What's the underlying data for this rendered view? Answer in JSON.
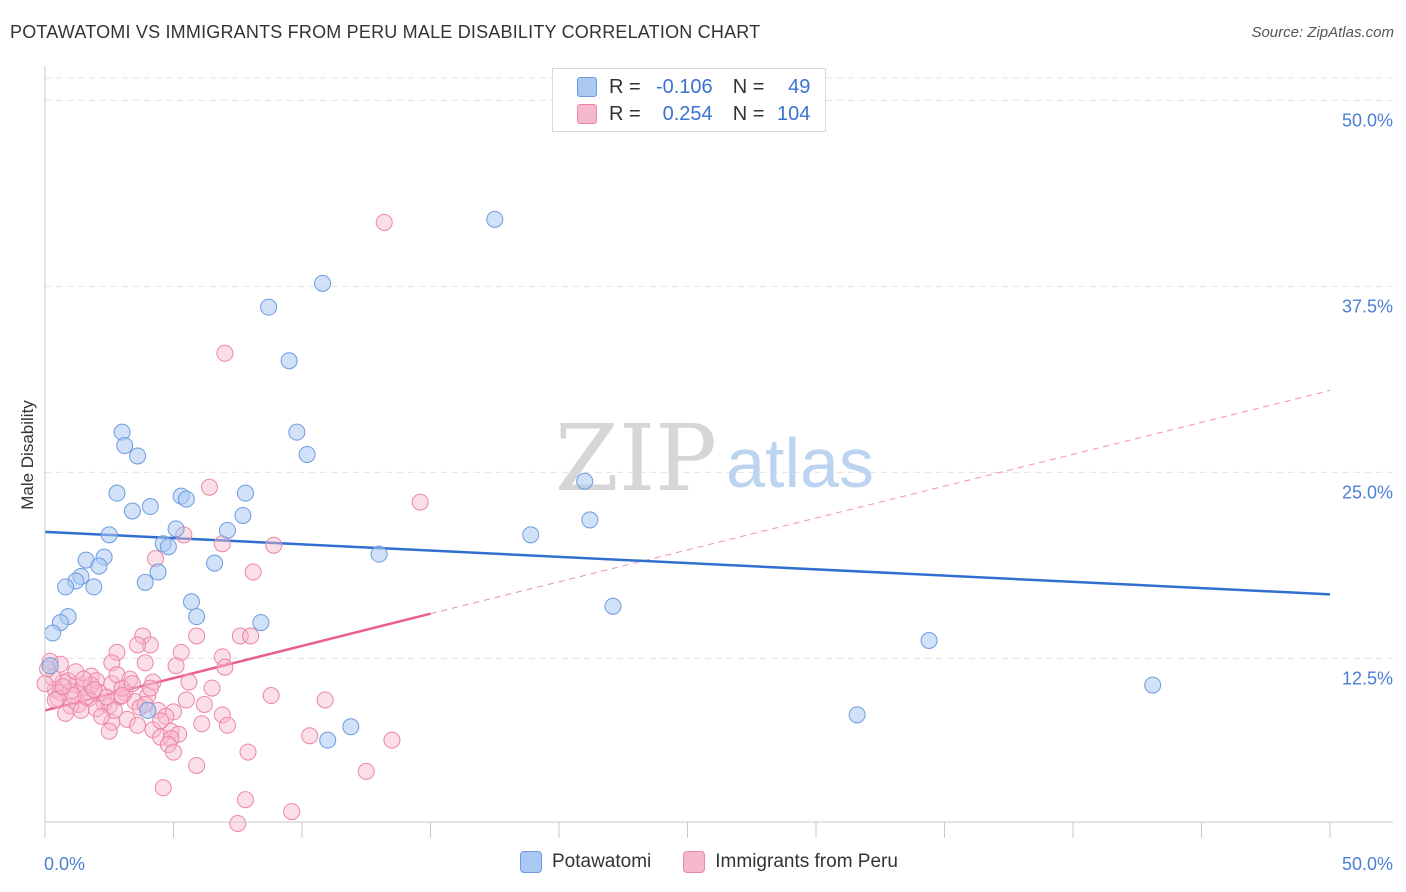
{
  "title": "POTAWATOMI VS IMMIGRANTS FROM PERU MALE DISABILITY CORRELATION CHART",
  "source": "Source: ZipAtlas.com",
  "watermark": {
    "part1": "ZIP",
    "part2": "atlas"
  },
  "legend": {
    "r_label": "R =",
    "n_label": "N =",
    "series1": {
      "r": "-0.106",
      "n": "49"
    },
    "series2": {
      "r": "0.254",
      "n": "104"
    }
  },
  "chart_data": {
    "type": "scatter",
    "title": "POTAWATOMI VS IMMIGRANTS FROM PERU MALE DISABILITY CORRELATION CHART",
    "xlabel": "",
    "ylabel": "Male Disability",
    "xlim": [
      0,
      50
    ],
    "ylim": [
      1.5,
      51.5
    ],
    "x_tick_labels": [
      "0.0%",
      "50.0%"
    ],
    "y_ticks": [
      12.5,
      25.0,
      37.5,
      50.0
    ],
    "y_tick_labels": [
      "12.5%",
      "25.0%",
      "37.5%",
      "50.0%"
    ],
    "grid": true,
    "legend_position": "bottom-center",
    "colors": {
      "potawatomi_fill": "#a9c8f2",
      "potawatomi_stroke": "#6e9be0",
      "potawatomi_line": "#2f6fcf",
      "peru_fill": "#f6b8cb",
      "peru_stroke": "#ec86a6",
      "peru_line": "#e8608d"
    },
    "series": [
      {
        "name": "Potawatomi",
        "r": -0.106,
        "n": 49,
        "trend": {
          "x": [
            0,
            50
          ],
          "y": [
            21.0,
            16.8
          ],
          "style": "solid"
        },
        "points": [
          [
            17.5,
            42.0
          ],
          [
            10.8,
            37.7
          ],
          [
            8.7,
            36.1
          ],
          [
            9.5,
            32.5
          ],
          [
            3.0,
            27.7
          ],
          [
            3.1,
            26.8
          ],
          [
            3.6,
            26.1
          ],
          [
            9.8,
            27.7
          ],
          [
            10.2,
            26.2
          ],
          [
            2.8,
            23.6
          ],
          [
            4.1,
            22.7
          ],
          [
            5.3,
            23.4
          ],
          [
            5.5,
            23.2
          ],
          [
            7.8,
            23.6
          ],
          [
            3.4,
            22.4
          ],
          [
            7.7,
            22.1
          ],
          [
            5.1,
            21.2
          ],
          [
            7.1,
            21.1
          ],
          [
            2.5,
            20.8
          ],
          [
            4.6,
            20.2
          ],
          [
            4.8,
            20.0
          ],
          [
            13.0,
            19.5
          ],
          [
            1.6,
            19.1
          ],
          [
            2.3,
            19.3
          ],
          [
            2.1,
            18.7
          ],
          [
            6.6,
            18.9
          ],
          [
            1.4,
            18.0
          ],
          [
            4.4,
            18.3
          ],
          [
            1.2,
            17.7
          ],
          [
            0.8,
            17.3
          ],
          [
            1.9,
            17.3
          ],
          [
            3.9,
            17.6
          ],
          [
            5.7,
            16.3
          ],
          [
            5.9,
            15.3
          ],
          [
            8.4,
            14.9
          ],
          [
            0.9,
            15.3
          ],
          [
            0.6,
            14.9
          ],
          [
            0.3,
            14.2
          ],
          [
            18.9,
            20.8
          ],
          [
            21.2,
            21.8
          ],
          [
            21.0,
            24.4
          ],
          [
            22.1,
            16.0
          ],
          [
            34.4,
            13.7
          ],
          [
            43.1,
            10.7
          ],
          [
            31.6,
            8.7
          ],
          [
            11.9,
            7.9
          ],
          [
            11.0,
            7.0
          ],
          [
            4.0,
            9.0
          ],
          [
            0.2,
            12.0
          ]
        ]
      },
      {
        "name": "Immigrants from Peru",
        "r": 0.254,
        "n": 104,
        "trend": {
          "x": [
            0,
            15
          ],
          "y": [
            9.0,
            15.5
          ],
          "style": "solid",
          "extension": {
            "x": [
              15,
              50
            ],
            "y": [
              15.5,
              30.5
            ],
            "style": "dashed"
          }
        },
        "points": [
          [
            13.2,
            41.8
          ],
          [
            7.0,
            33.0
          ],
          [
            6.4,
            24.0
          ],
          [
            14.6,
            23.0
          ],
          [
            5.4,
            20.8
          ],
          [
            8.9,
            20.1
          ],
          [
            6.9,
            20.2
          ],
          [
            4.3,
            19.2
          ],
          [
            8.1,
            18.3
          ],
          [
            3.8,
            14.0
          ],
          [
            5.9,
            14.0
          ],
          [
            7.6,
            14.0
          ],
          [
            8.0,
            14.0
          ],
          [
            4.1,
            13.4
          ],
          [
            3.6,
            13.4
          ],
          [
            2.8,
            12.9
          ],
          [
            5.3,
            12.9
          ],
          [
            6.9,
            12.6
          ],
          [
            2.6,
            12.2
          ],
          [
            3.9,
            12.2
          ],
          [
            5.1,
            12.0
          ],
          [
            7.0,
            11.9
          ],
          [
            1.8,
            11.3
          ],
          [
            3.3,
            11.1
          ],
          [
            2.0,
            11.0
          ],
          [
            4.2,
            10.9
          ],
          [
            2.6,
            10.8
          ],
          [
            0.7,
            10.9
          ],
          [
            1.2,
            10.7
          ],
          [
            1.5,
            10.5
          ],
          [
            0.4,
            10.4
          ],
          [
            1.0,
            10.3
          ],
          [
            0.6,
            10.2
          ],
          [
            2.1,
            10.2
          ],
          [
            3.1,
            10.2
          ],
          [
            4.0,
            10.0
          ],
          [
            2.9,
            9.9
          ],
          [
            1.7,
            9.8
          ],
          [
            3.5,
            9.6
          ],
          [
            2.3,
            9.5
          ],
          [
            1.3,
            9.4
          ],
          [
            2.5,
            9.3
          ],
          [
            3.7,
            9.2
          ],
          [
            1.0,
            9.3
          ],
          [
            4.4,
            9.0
          ],
          [
            5.0,
            8.9
          ],
          [
            4.7,
            8.6
          ],
          [
            3.2,
            8.4
          ],
          [
            2.6,
            8.2
          ],
          [
            3.6,
            8.0
          ],
          [
            4.2,
            7.7
          ],
          [
            2.5,
            7.6
          ],
          [
            4.9,
            7.6
          ],
          [
            5.2,
            7.4
          ],
          [
            4.5,
            7.2
          ],
          [
            4.9,
            7.1
          ],
          [
            4.8,
            6.7
          ],
          [
            5.0,
            6.2
          ],
          [
            5.9,
            5.3
          ],
          [
            4.6,
            3.8
          ],
          [
            7.8,
            3.0
          ],
          [
            7.5,
            1.4
          ],
          [
            9.6,
            2.2
          ],
          [
            7.9,
            6.2
          ],
          [
            6.2,
            9.4
          ],
          [
            6.9,
            8.7
          ],
          [
            7.1,
            8.0
          ],
          [
            6.1,
            8.1
          ],
          [
            5.5,
            9.7
          ],
          [
            5.6,
            10.9
          ],
          [
            8.8,
            10.0
          ],
          [
            10.3,
            7.3
          ],
          [
            12.5,
            4.9
          ],
          [
            13.5,
            7.0
          ],
          [
            10.9,
            9.7
          ],
          [
            1.1,
            10.0
          ],
          [
            0.5,
            9.8
          ],
          [
            2.0,
            9.1
          ],
          [
            1.6,
            9.9
          ],
          [
            3.0,
            10.5
          ],
          [
            0.9,
            11.0
          ],
          [
            1.8,
            10.7
          ],
          [
            2.4,
            9.9
          ],
          [
            3.4,
            10.8
          ],
          [
            0.3,
            11.2
          ],
          [
            1.4,
            9.0
          ],
          [
            2.7,
            9.0
          ],
          [
            0.8,
            8.8
          ],
          [
            3.9,
            9.4
          ],
          [
            4.5,
            8.3
          ],
          [
            1.2,
            11.6
          ],
          [
            0.2,
            12.3
          ],
          [
            0.6,
            12.1
          ],
          [
            2.2,
            8.6
          ],
          [
            3.0,
            10.0
          ],
          [
            0.4,
            9.7
          ],
          [
            1.9,
            10.4
          ],
          [
            2.8,
            11.4
          ],
          [
            4.1,
            10.5
          ],
          [
            0.7,
            10.6
          ],
          [
            1.5,
            11.1
          ],
          [
            6.5,
            10.5
          ],
          [
            0.1,
            11.8
          ],
          [
            0.0,
            10.8
          ]
        ]
      }
    ]
  }
}
